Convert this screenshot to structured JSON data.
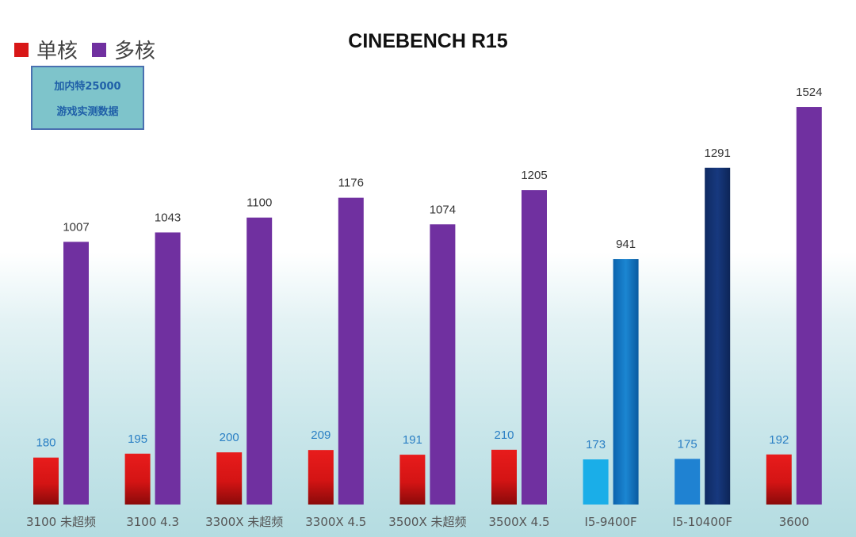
{
  "chart_data": {
    "type": "bar",
    "title": "CINEBENCH R15",
    "legend": [
      {
        "label": "单核",
        "color": "#d81717"
      },
      {
        "label": "多核",
        "color": "#7030a0"
      }
    ],
    "note_lines": [
      "加内特25000",
      "游戏实测数据"
    ],
    "categories": [
      "3100 未超频",
      "3100 4.3",
      "3300X 未超频",
      "3300X 4.5",
      "3500X 未超频",
      "3500X 4.5",
      "I5-9400F",
      "I5-10400F",
      "3600"
    ],
    "series": [
      {
        "name": "单核",
        "values": [
          180,
          195,
          200,
          209,
          191,
          210,
          173,
          175,
          192
        ]
      },
      {
        "name": "多核",
        "values": [
          1007,
          1043,
          1100,
          1176,
          1074,
          1205,
          941,
          1291,
          1524
        ]
      }
    ],
    "ylim": [
      0,
      1600
    ],
    "colors": {
      "amd_single": "#d81717",
      "amd_multi": "#7030a0",
      "intel_single_9400": "#1aaee8",
      "intel_multi_9400": "#1276c2",
      "intel_single_10400": "#1f82d2",
      "intel_multi_10400": "#12306e",
      "single_label": "#2a7fc4",
      "multi_label": "#333333",
      "axis_label": "#555555"
    },
    "intel_categories": [
      "I5-9400F",
      "I5-10400F"
    ]
  }
}
